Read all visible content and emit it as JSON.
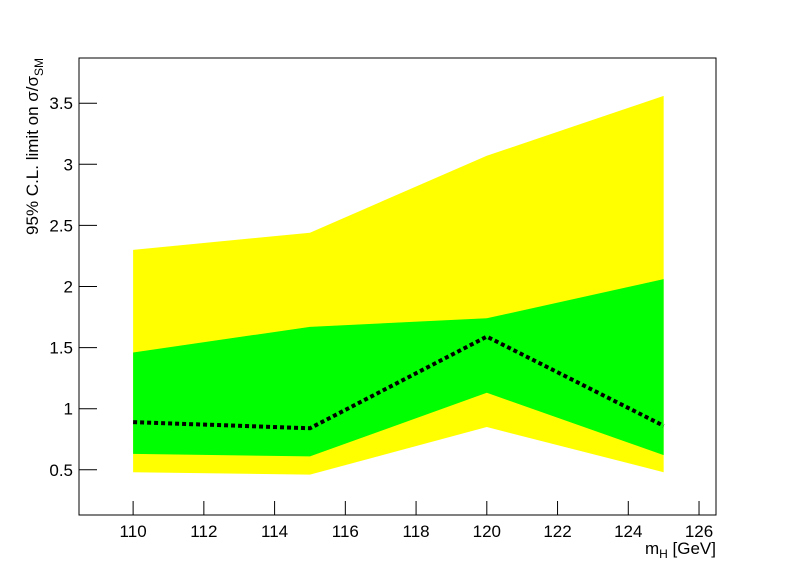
{
  "chart_data": {
    "type": "band",
    "x_label": [
      "m",
      "H",
      " [GeV]"
    ],
    "y_label": [
      "95% C.L. limit on σ/σ",
      "SM"
    ],
    "x": [
      110,
      115,
      120,
      125
    ],
    "bands": [
      {
        "color": "#ffff00",
        "lower": [
          0.48,
          0.46,
          0.85,
          0.48
        ],
        "upper": [
          2.3,
          2.44,
          3.07,
          3.56
        ]
      },
      {
        "color": "#00ff00",
        "lower": [
          0.63,
          0.61,
          1.13,
          0.62
        ],
        "upper": [
          1.46,
          1.67,
          1.74,
          2.06
        ]
      }
    ],
    "series": [
      {
        "color": "#000000",
        "dashed": true,
        "values": [
          0.89,
          0.84,
          1.59,
          0.86
        ]
      }
    ],
    "xlim": [
      108.47,
      126.48
    ],
    "ylim": [
      0.13,
      3.87
    ],
    "xticks": [
      110,
      112,
      114,
      116,
      118,
      120,
      122,
      124,
      126
    ],
    "yticks": [
      0.5,
      1,
      1.5,
      2,
      2.5,
      3,
      3.5
    ]
  }
}
